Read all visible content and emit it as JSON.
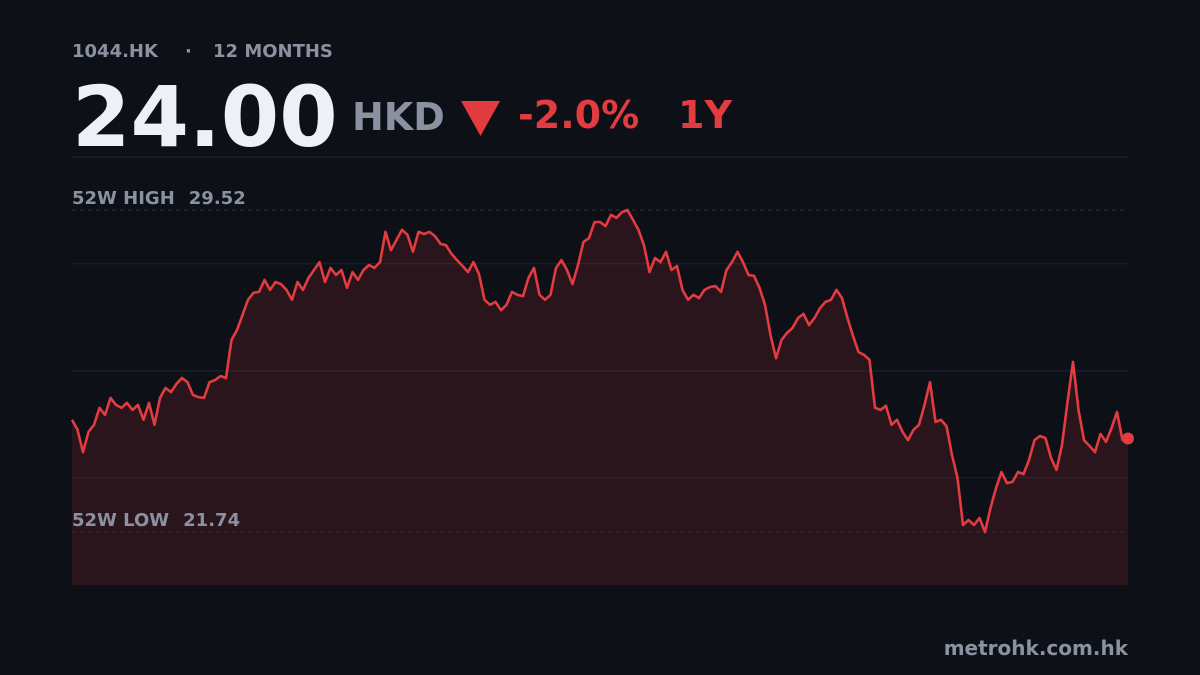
{
  "chart_data": {
    "type": "line",
    "ticker": "1044.HK",
    "period": "12 MONTHS",
    "price": "24.00",
    "currency": "HKD",
    "change": "-2.0%",
    "range": "1Y",
    "source": "metrohk.com.hk",
    "color": "#e23b40",
    "ylim": [
      20.46,
      30.8
    ],
    "yticks": [
      23.05,
      25.63,
      28.22
    ],
    "grid": true,
    "annotations": [
      {
        "label": "52W HIGH",
        "value": 29.52
      },
      {
        "label": "52W LOW",
        "value": 21.74
      }
    ],
    "values": [
      24.45,
      24.21,
      23.67,
      24.16,
      24.33,
      24.74,
      24.57,
      24.98,
      24.81,
      24.74,
      24.86,
      24.69,
      24.81,
      24.45,
      24.86,
      24.33,
      24.98,
      25.22,
      25.12,
      25.32,
      25.46,
      25.36,
      25.05,
      25.0,
      24.98,
      25.36,
      25.41,
      25.51,
      25.46,
      26.38,
      26.62,
      26.98,
      27.35,
      27.52,
      27.54,
      27.83,
      27.59,
      27.78,
      27.73,
      27.59,
      27.35,
      27.78,
      27.59,
      27.88,
      28.07,
      28.26,
      27.78,
      28.12,
      27.95,
      28.07,
      27.64,
      28.02,
      27.83,
      28.07,
      28.19,
      28.12,
      28.26,
      28.99,
      28.55,
      28.8,
      29.04,
      28.92,
      28.51,
      28.99,
      28.94,
      28.99,
      28.89,
      28.7,
      28.67,
      28.46,
      28.31,
      28.17,
      28.02,
      28.26,
      27.97,
      27.35,
      27.23,
      27.3,
      27.1,
      27.23,
      27.54,
      27.47,
      27.44,
      27.88,
      28.12,
      27.47,
      27.35,
      27.47,
      28.12,
      28.31,
      28.07,
      27.73,
      28.19,
      28.75,
      28.84,
      29.23,
      29.23,
      29.13,
      29.4,
      29.33,
      29.47,
      29.52,
      29.28,
      29.04,
      28.67,
      28.02,
      28.36,
      28.26,
      28.51,
      28.07,
      28.17,
      27.59,
      27.35,
      27.47,
      27.39,
      27.59,
      27.66,
      27.68,
      27.54,
      28.07,
      28.26,
      28.51,
      28.26,
      27.95,
      27.93,
      27.64,
      27.23,
      26.5,
      25.94,
      26.38,
      26.55,
      26.67,
      26.91,
      27.01,
      26.74,
      26.91,
      27.15,
      27.3,
      27.35,
      27.59,
      27.39,
      26.91,
      26.48,
      26.09,
      26.02,
      25.9,
      24.74,
      24.69,
      24.79,
      24.33,
      24.45,
      24.16,
      23.96,
      24.21,
      24.33,
      24.81,
      25.36,
      24.4,
      24.45,
      24.3,
      23.6,
      23.05,
      21.91,
      22.03,
      21.91,
      22.08,
      21.74,
      22.32,
      22.8,
      23.19,
      22.92,
      22.95,
      23.19,
      23.14,
      23.48,
      23.96,
      24.06,
      24.01,
      23.53,
      23.24,
      23.84,
      24.88,
      25.85,
      24.69,
      23.96,
      23.82,
      23.67,
      24.11,
      23.92,
      24.25,
      24.64,
      23.96,
      24.0
    ]
  }
}
